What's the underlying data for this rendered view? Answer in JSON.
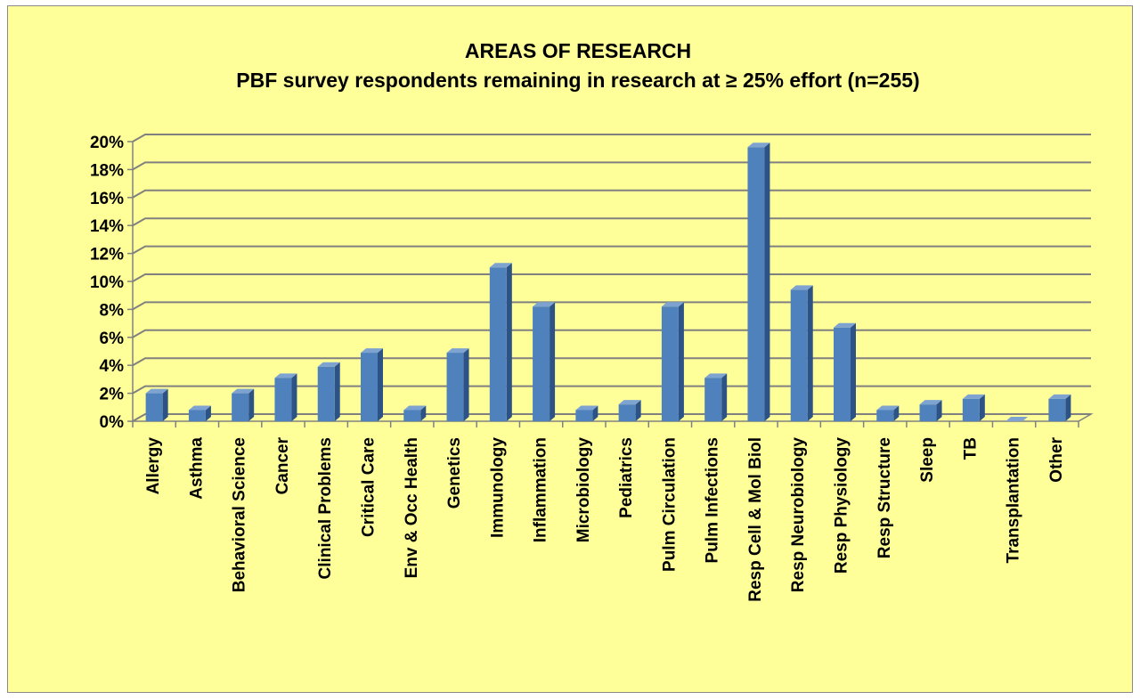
{
  "chart_data": {
    "type": "bar",
    "title": "AREAS OF RESEARCH",
    "subtitle": "PBF survey respondents remaining in research at ≥ 25% effort  (n=255)",
    "xlabel": "",
    "ylabel": "",
    "ylim": [
      0,
      20
    ],
    "y_ticks": [
      "0%",
      "2%",
      "4%",
      "6%",
      "8%",
      "10%",
      "12%",
      "14%",
      "16%",
      "18%",
      "20%"
    ],
    "grid": true,
    "legend": "none",
    "categories": [
      "Allergy",
      "Asthma",
      "Behavioral Science",
      "Cancer",
      "Clinical Problems",
      "Critical Care",
      "Env & Occ Health",
      "Genetics",
      "Immunology",
      "Inflammation",
      "Microbiology",
      "Pediatrics",
      "Pulm Circulation",
      "Pulm Infections",
      "Resp Cell & Mol Biol",
      "Resp Neurobiology",
      "Resp Physiology",
      "Resp Structure",
      "Sleep",
      "TB",
      "Transplantation",
      "Other"
    ],
    "values": [
      2.0,
      0.8,
      2.0,
      3.1,
      3.9,
      4.9,
      0.8,
      4.9,
      11.0,
      8.2,
      0.8,
      1.2,
      8.2,
      3.1,
      19.6,
      9.4,
      6.7,
      0.8,
      1.2,
      1.6,
      0.0,
      1.6
    ],
    "unit": "%"
  },
  "colors": {
    "background": "#ffff99",
    "bar_front": "#4f81bd",
    "bar_side": "#2c5286",
    "bar_top": "#7ea3d1",
    "grid": "#808080"
  }
}
